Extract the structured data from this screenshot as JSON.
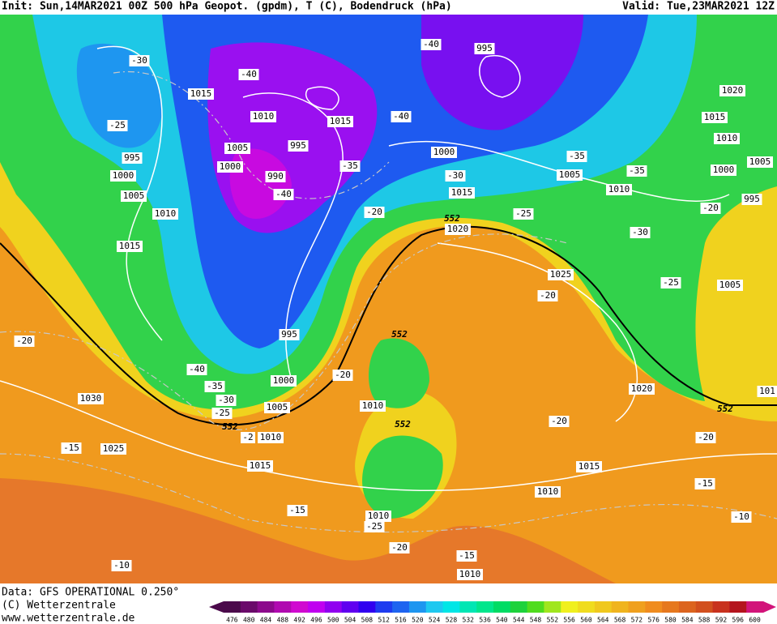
{
  "header": {
    "init": "Init: Sun,14MAR2021 00Z 500 hPa Geopot. (gpdm), T (C), Bodendruck (hPa)",
    "valid": "Valid: Tue,23MAR2021 12Z"
  },
  "footer": [
    "Data: GFS OPERATIONAL 0.250°",
    "(C) Wetterzentrale",
    "www.wetterzentrale.de"
  ],
  "pressure_labels": [
    1015,
    1010,
    1015,
    1005,
    995,
    1000,
    990,
    1000,
    1005,
    1010,
    1015,
    1020,
    1025,
    995,
    1020,
    1015,
    1010,
    1000,
    1005,
    995,
    1005,
    1020,
    101,
    995,
    1000,
    1005,
    1010,
    1015,
    995,
    1000,
    1005,
    1010,
    1030,
    1025,
    1010,
    1015,
    1015,
    1010,
    1010,
    1010
  ],
  "temperature_labels": [
    -30,
    -25,
    -40,
    -40,
    -40,
    -35,
    -40,
    -20,
    -30,
    -35,
    -35,
    -25,
    -30,
    -20,
    -25,
    -20,
    -20,
    -40,
    -35,
    -30,
    -25,
    -2,
    -20,
    -20,
    -20,
    -15,
    -15,
    -15,
    -10,
    -20,
    -25,
    -15,
    -10
  ],
  "height_labels": [
    552,
    552,
    552,
    552,
    552
  ],
  "colorbar": [
    476,
    480,
    484,
    488,
    492,
    496,
    500,
    504,
    508,
    512,
    516,
    520,
    524,
    528,
    532,
    536,
    540,
    544,
    548,
    552,
    556,
    560,
    564,
    568,
    572,
    576,
    580,
    584,
    588,
    592,
    596,
    600
  ]
}
